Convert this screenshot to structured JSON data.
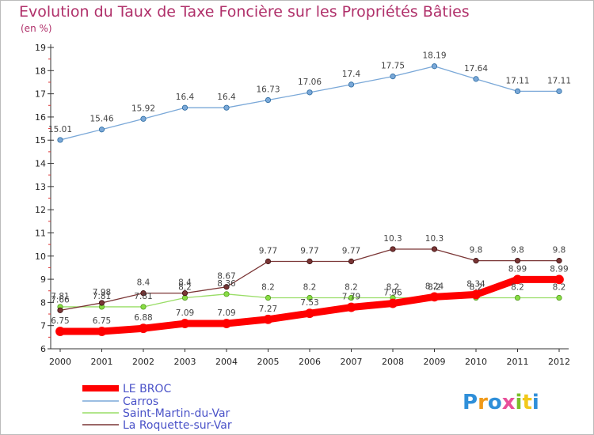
{
  "title": "Evolution du Taux de Taxe Foncière sur les Propriétés Bâties",
  "subtitle": "(en %)",
  "brand": {
    "text": "Proxiti",
    "colors": [
      "#2f8fd9",
      "#f09a1a",
      "#2f8fd9",
      "#e84f9a",
      "#7bbf2a",
      "#f2c81a",
      "#2f8fd9"
    ]
  },
  "chart_data": {
    "type": "line",
    "title": "Evolution du Taux de Taxe Foncière sur les Propriétés Bâties",
    "ylabel": "(en %)",
    "xlabel": "",
    "x": [
      "2000",
      "2001",
      "2002",
      "2003",
      "2004",
      "2005",
      "2006",
      "2007",
      "2008",
      "2009",
      "2010",
      "2011",
      "2012"
    ],
    "ylim": [
      6,
      19
    ],
    "yticks": [
      "6",
      "7",
      "8",
      "9",
      "10",
      "11",
      "12",
      "13",
      "14",
      "15",
      "16",
      "17",
      "18",
      "19"
    ],
    "grid": false,
    "legend_position": "bottom-left",
    "series": [
      {
        "name": "LE BROC",
        "color": "#ff0000",
        "values": [
          6.75,
          6.75,
          6.88,
          7.09,
          7.09,
          7.27,
          7.53,
          7.79,
          7.96,
          8.24,
          8.34,
          8.99,
          8.99
        ],
        "labels": [
          "6.75",
          "6.75",
          "6.88",
          "7.09",
          "7.09",
          "7.27",
          "7.53",
          "7.79",
          "7.96",
          "8.24",
          "8.34",
          "8.99",
          "8.99"
        ]
      },
      {
        "name": "Carros",
        "color": "#7aa8d8",
        "values": [
          15.01,
          15.46,
          15.92,
          16.4,
          16.4,
          16.73,
          17.06,
          17.4,
          17.75,
          18.19,
          17.64,
          17.11,
          17.11
        ],
        "labels": [
          "15.01",
          "15.46",
          "15.92",
          "16.4",
          "16.4",
          "16.73",
          "17.06",
          "17.4",
          "17.75",
          "18.19",
          "17.64",
          "17.11",
          "17.11"
        ]
      },
      {
        "name": "Saint-Martin-du-Var",
        "color": "#99dd66",
        "values": [
          7.81,
          7.81,
          7.81,
          8.2,
          8.36,
          8.2,
          8.2,
          8.2,
          8.2,
          8.2,
          8.2,
          8.2,
          8.2
        ],
        "labels": [
          "7.81",
          "7.81",
          "7.81",
          "8.2",
          "8.36",
          "8.2",
          "8.2",
          "8.2",
          "8.2",
          "8.2",
          "8.2",
          "8.2",
          "8.2"
        ]
      },
      {
        "name": "La Roquette-sur-Var",
        "color": "#7a3535",
        "values": [
          7.66,
          7.98,
          8.4,
          8.4,
          8.67,
          9.77,
          9.77,
          9.77,
          10.3,
          10.3,
          9.8,
          9.8,
          9.8
        ],
        "labels": [
          "7.66",
          "7.98",
          "8.4",
          "8.4",
          "8.67",
          "9.77",
          "9.77",
          "9.77",
          "10.3",
          "10.3",
          "9.8",
          "9.8",
          "9.8"
        ]
      }
    ]
  }
}
